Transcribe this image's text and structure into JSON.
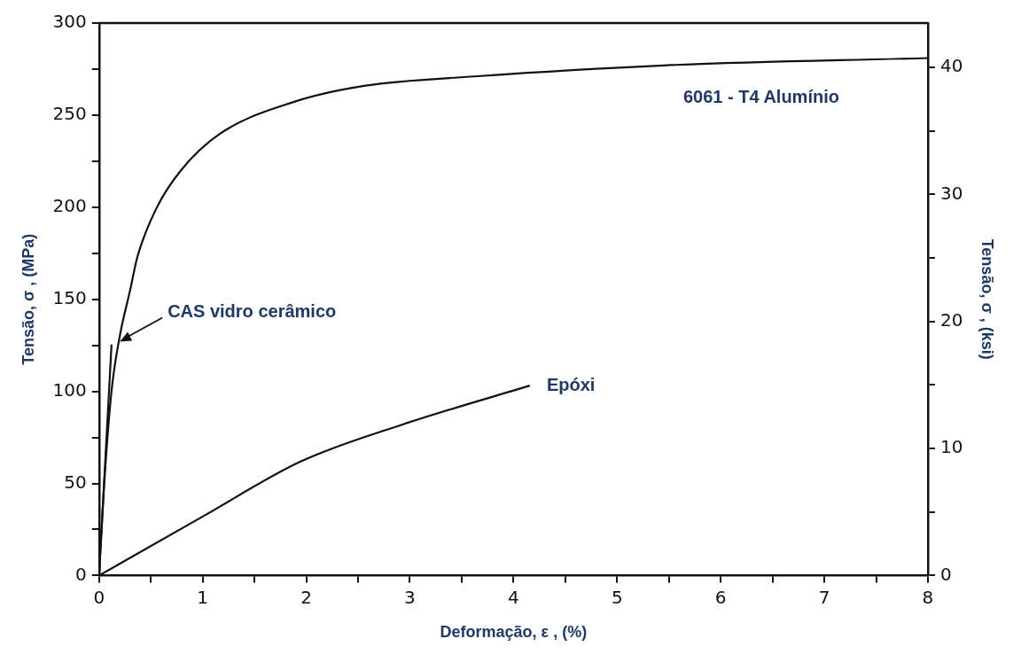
{
  "chart_data": {
    "type": "line",
    "xlabel": "Deformação, ε , (%)",
    "ylabel": "Tensão, σ , (MPa)",
    "y2label": "Tensão, σ , (ksi)",
    "xlim": [
      0,
      8
    ],
    "xticks": [
      0,
      {
        "value": 0.5,
        "label": null
      },
      1,
      {
        "value": 1.5,
        "label": null
      },
      2,
      {
        "value": 2.5,
        "label": null
      },
      3,
      {
        "value": 3.5,
        "label": null
      },
      4,
      {
        "value": 4.5,
        "label": null
      },
      5,
      {
        "value": 5.5,
        "label": null
      },
      6,
      {
        "value": 6.5,
        "label": null
      },
      7,
      {
        "value": 7.5,
        "label": null
      },
      8
    ],
    "ylim": [
      0,
      300
    ],
    "yticks": [
      0,
      {
        "value": 25,
        "label": null
      },
      50,
      {
        "value": 75,
        "label": null
      },
      100,
      {
        "value": 125,
        "label": null
      },
      150,
      {
        "value": 175,
        "label": null
      },
      200,
      {
        "value": 225,
        "label": null
      },
      250,
      {
        "value": 275,
        "label": null
      },
      300
    ],
    "y2lim": [
      0,
      43.5
    ],
    "y2ticks": [
      0,
      {
        "value": 5,
        "label": null
      },
      10,
      {
        "value": 15,
        "label": null
      },
      20,
      {
        "value": 25,
        "label": null
      },
      30,
      {
        "value": 35,
        "label": null
      },
      40
    ],
    "annotations": [
      {
        "text": "CAS vidro cerâmico",
        "x": 0.2,
        "y": 127
      }
    ],
    "grid": false,
    "legend": false,
    "marker": "none",
    "line_style": "solid",
    "series": [
      {
        "name": "6061 - T4 Alumínio",
        "color": "#111111",
        "x": [
          0,
          0.05,
          0.12,
          0.2,
          0.3,
          0.37,
          0.55,
          0.79,
          1.17,
          1.87,
          2.57,
          3.62,
          5.45,
          8
        ],
        "values": [
          0,
          50,
          100,
          130,
          155,
          173,
          199,
          220,
          240,
          257,
          266,
          271,
          277,
          281
        ]
      },
      {
        "color": "#111111",
        "x": [
          0,
          0.12
        ],
        "values": [
          0,
          125
        ]
      },
      {
        "name": "Epóxi",
        "color": "#111111",
        "x": [
          0,
          1,
          1.95,
          2.93,
          4.15
        ],
        "values": [
          0,
          32,
          62,
          82,
          103
        ]
      }
    ]
  }
}
